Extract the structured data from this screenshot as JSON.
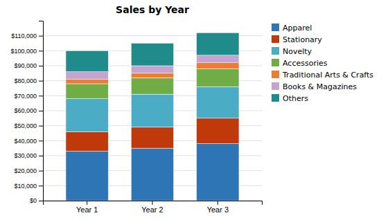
{
  "chart_data": {
    "type": "bar",
    "stacked": true,
    "title": "Sales by Year",
    "categories": [
      "Year 1",
      "Year 2",
      "Year 3"
    ],
    "series": [
      {
        "name": "Apparel",
        "color": "#2E75B6",
        "values": [
          33000,
          35000,
          38000
        ]
      },
      {
        "name": "Stationary",
        "color": "#C0390B",
        "values": [
          13000,
          14000,
          17000
        ]
      },
      {
        "name": "Novelty",
        "color": "#4BACC6",
        "values": [
          22000,
          22000,
          21000
        ]
      },
      {
        "name": "Accessories",
        "color": "#70AD47",
        "values": [
          10000,
          11000,
          12000
        ]
      },
      {
        "name": "Traditional Arts & Crafts",
        "color": "#ED7D31",
        "values": [
          3000,
          3000,
          4000
        ]
      },
      {
        "name": "Books & Magazines",
        "color": "#C5A5CF",
        "values": [
          5000,
          5000,
          5000
        ]
      },
      {
        "name": "Others",
        "color": "#1F8B8B",
        "values": [
          14000,
          15000,
          15000
        ]
      }
    ],
    "ylim": [
      0,
      120000
    ],
    "yticks": [
      {
        "value": 0,
        "label": "$0"
      },
      {
        "value": 10000,
        "label": "$10,000"
      },
      {
        "value": 20000,
        "label": "$20,000"
      },
      {
        "value": 30000,
        "label": "$30,000"
      },
      {
        "value": 40000,
        "label": "$40,000"
      },
      {
        "value": 50000,
        "label": "$50,000"
      },
      {
        "value": 60000,
        "label": "$60,000"
      },
      {
        "value": 70000,
        "label": "$70,000"
      },
      {
        "value": 80000,
        "label": "$80,000"
      },
      {
        "value": 90000,
        "label": "$90,000"
      },
      {
        "value": 100000,
        "label": "$100,000"
      },
      {
        "value": 110000,
        "label": "$110,000"
      }
    ],
    "grid": true,
    "legend": "right"
  }
}
